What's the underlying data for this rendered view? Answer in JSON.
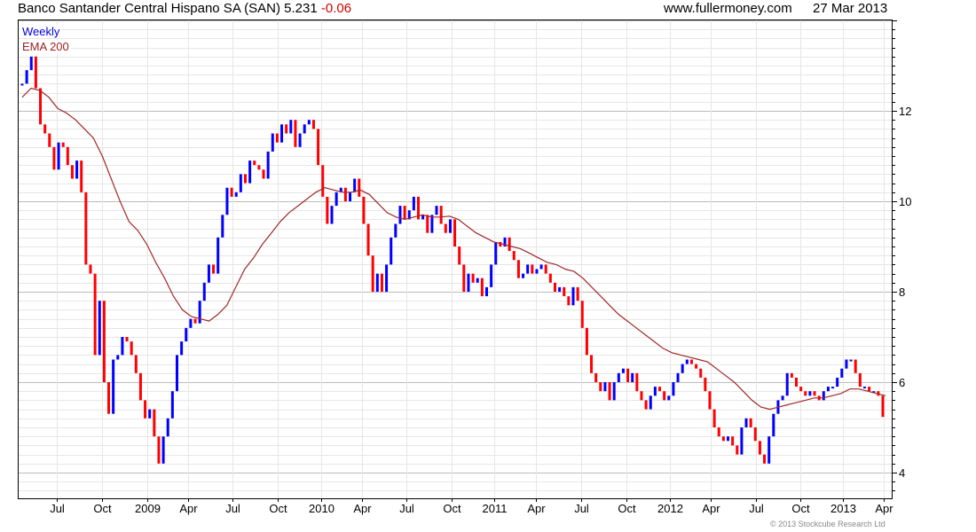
{
  "header": {
    "name": "Banco Santander Central Hispano SA (SAN)",
    "price": "5.231",
    "change": "-0.06",
    "site": "www.fullermoney.com",
    "date": "27 Mar 2013"
  },
  "legend": {
    "frequency": "Weekly",
    "indicator": "EMA 200"
  },
  "footer": {
    "copyright": "© 2013 Stockcube Research Ltd"
  },
  "colors": {
    "up": "#0000ff",
    "down": "#ff0000",
    "ema": "#a02828",
    "grid_major": "#bbbbbb",
    "grid_minor": "#e6e6e6"
  },
  "chart_data": {
    "type": "candlestick",
    "title": "Banco Santander Central Hispano SA (SAN)",
    "period": "Weekly",
    "start": "2008-04",
    "end": "2013-03-27",
    "ylim": [
      3.45,
      14.0
    ],
    "yticks": [
      4,
      6,
      8,
      10,
      12
    ],
    "xticks": [
      "Jul",
      "Oct",
      "2009",
      "Apr",
      "Jul",
      "Oct",
      "2010",
      "Apr",
      "Jul",
      "Oct",
      "2011",
      "Apr",
      "Jul",
      "Oct",
      "2012",
      "Apr",
      "Jul",
      "Oct",
      "2013",
      "Apr"
    ],
    "grid": true,
    "legend_position": "top-left",
    "close": [
      12.6,
      12.9,
      13.2,
      12.5,
      11.7,
      11.5,
      11.2,
      10.7,
      11.3,
      11.2,
      10.8,
      10.5,
      10.9,
      10.2,
      8.6,
      8.4,
      6.6,
      7.8,
      6.0,
      5.3,
      6.5,
      6.6,
      7.0,
      6.9,
      6.6,
      6.2,
      5.6,
      5.2,
      5.4,
      4.8,
      4.2,
      4.8,
      5.2,
      5.8,
      6.6,
      6.9,
      7.2,
      7.4,
      7.3,
      7.8,
      8.2,
      8.6,
      8.4,
      9.2,
      9.7,
      10.3,
      10.1,
      10.2,
      10.6,
      10.4,
      10.9,
      10.8,
      10.7,
      10.5,
      11.1,
      11.5,
      11.3,
      11.7,
      11.5,
      11.8,
      11.2,
      11.5,
      11.7,
      11.8,
      11.6,
      10.8,
      10.1,
      9.5,
      9.9,
      10.2,
      10.3,
      10.0,
      10.2,
      10.5,
      10.1,
      9.5,
      8.8,
      8.0,
      8.4,
      8.0,
      8.6,
      9.2,
      9.5,
      9.9,
      9.6,
      9.8,
      10.1,
      9.6,
      9.7,
      9.3,
      9.7,
      9.9,
      9.5,
      9.3,
      9.6,
      9.0,
      8.6,
      8.0,
      8.4,
      8.2,
      8.3,
      7.9,
      8.1,
      8.6,
      9.1,
      9.0,
      9.2,
      8.9,
      8.7,
      8.3,
      8.4,
      8.6,
      8.4,
      8.5,
      8.6,
      8.4,
      8.2,
      8.0,
      8.1,
      7.9,
      7.7,
      8.1,
      7.8,
      7.2,
      6.6,
      6.2,
      6.0,
      5.8,
      6.0,
      5.6,
      6.0,
      6.2,
      6.3,
      6.0,
      6.2,
      5.8,
      5.6,
      5.4,
      5.7,
      5.9,
      5.8,
      5.6,
      5.7,
      6.0,
      6.2,
      6.4,
      6.5,
      6.4,
      6.3,
      6.1,
      5.8,
      5.4,
      5.0,
      4.8,
      4.7,
      4.8,
      4.6,
      4.4,
      5.0,
      5.2,
      5.0,
      4.7,
      4.4,
      4.2,
      4.8,
      5.3,
      5.6,
      5.7,
      6.2,
      6.1,
      5.9,
      5.8,
      5.7,
      5.8,
      5.7,
      5.6,
      5.8,
      5.9,
      5.9,
      6.1,
      6.3,
      6.5,
      6.5,
      6.2,
      5.9,
      5.9,
      5.8,
      5.8,
      5.7,
      5.231
    ],
    "ema200": [
      12.3,
      12.5,
      12.45,
      12.3,
      12.05,
      11.95,
      11.8,
      11.6,
      11.4,
      11.0,
      10.5,
      10.0,
      9.55,
      9.35,
      9.05,
      8.65,
      8.3,
      7.9,
      7.6,
      7.45,
      7.4,
      7.35,
      7.5,
      7.7,
      8.1,
      8.5,
      8.75,
      9.05,
      9.3,
      9.55,
      9.75,
      9.9,
      10.05,
      10.2,
      10.3,
      10.25,
      10.2,
      10.2,
      10.25,
      10.15,
      9.95,
      9.75,
      9.65,
      9.6,
      9.65,
      9.7,
      9.65,
      9.65,
      9.67,
      9.6,
      9.45,
      9.3,
      9.2,
      9.1,
      9.05,
      9.0,
      8.95,
      8.85,
      8.75,
      8.65,
      8.6,
      8.5,
      8.45,
      8.3,
      8.1,
      7.9,
      7.7,
      7.5,
      7.35,
      7.2,
      7.05,
      6.9,
      6.75,
      6.65,
      6.6,
      6.55,
      6.5,
      6.45,
      6.3,
      6.15,
      6.0,
      5.8,
      5.6,
      5.45,
      5.4,
      5.45,
      5.5,
      5.55,
      5.6,
      5.65,
      5.65,
      5.7,
      5.75,
      5.85,
      5.85,
      5.8,
      5.75,
      5.7
    ]
  }
}
